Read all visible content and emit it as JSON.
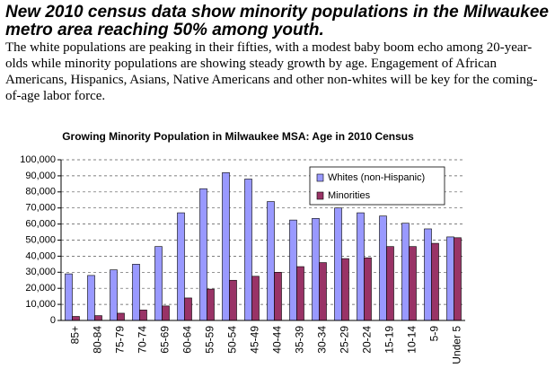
{
  "header": {
    "title": "New 2010 census data show minority populations in the Milwaukee metro area reaching 50% among youth.",
    "text": "The white populations are peaking in their fifties, with a modest baby boom echo among 20-year-olds while minority populations are showing steady growth by age.  Engagement of African Americans, Hispanics, Asians, Native Americans and other non-whites will be key for the coming-of-age labor force."
  },
  "chart_data": {
    "type": "bar",
    "title": "Growing Minority Population in Milwaukee MSA: Age in 2010 Census",
    "categories": [
      "85+",
      "80-84",
      "75-79",
      "70-74",
      "65-69",
      "60-64",
      "55-59",
      "50-54",
      "45-49",
      "40-44",
      "35-39",
      "30-34",
      "25-29",
      "20-24",
      "15-19",
      "10-14",
      "5-9",
      "Under 5"
    ],
    "series": [
      {
        "name": "Whites (non-Hispanic)",
        "color": "#9999ff",
        "values": [
          29000,
          28000,
          31500,
          35000,
          46000,
          67000,
          82000,
          92000,
          88000,
          74000,
          62500,
          63500,
          70000,
          67000,
          65000,
          60500,
          57000,
          52000
        ]
      },
      {
        "name": "Minorities",
        "color": "#993366",
        "values": [
          2500,
          3000,
          4500,
          6500,
          9000,
          14000,
          19500,
          25000,
          27500,
          30000,
          33500,
          36000,
          38500,
          39000,
          46000,
          46000,
          48000,
          51500
        ]
      }
    ],
    "ylim": [
      0,
      100000
    ],
    "yticks": [
      0,
      {
        "value": 10000,
        "label": "10,000"
      },
      {
        "value": 20000,
        "label": "20,000"
      },
      {
        "value": 30000,
        "label": "30,000"
      },
      {
        "value": 40000,
        "label": "40,000"
      },
      {
        "value": 50000,
        "label": "50,000"
      },
      {
        "value": 60000,
        "label": "60,000"
      },
      {
        "value": 70000,
        "label": "70,000"
      },
      {
        "value": 80000,
        "label": "80,000"
      },
      {
        "value": 90000,
        "label": "90,000"
      },
      {
        "value": 100000,
        "label": "100,000"
      }
    ],
    "grid": true,
    "legend": "upper right"
  }
}
